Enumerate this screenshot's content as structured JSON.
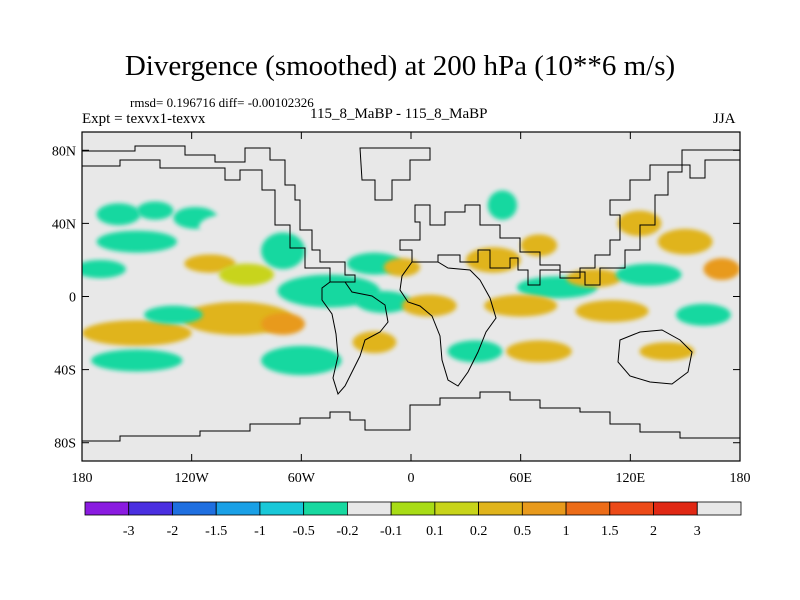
{
  "chart_data": {
    "type": "heatmap",
    "title": "Divergence (smoothed) at 200 hPa (10**6 m/s)",
    "stats_text": "rmsd= 0.196716  diff= -0.00102326",
    "left_label": "Expt = texvx1-texvx",
    "center_label": "115_8_MaBP - 115_8_MaBP",
    "right_label": "JJA",
    "x_range": [
      -180,
      180
    ],
    "y_range": [
      -90,
      90
    ],
    "x_ticks": [
      {
        "value": -180,
        "label": "180"
      },
      {
        "value": -120,
        "label": "120W"
      },
      {
        "value": -60,
        "label": "60W"
      },
      {
        "value": 0,
        "label": "0"
      },
      {
        "value": 60,
        "label": "60E"
      },
      {
        "value": 120,
        "label": "120E"
      },
      {
        "value": 180,
        "label": "180"
      }
    ],
    "y_ticks": [
      {
        "value": 80,
        "label": "80N"
      },
      {
        "value": 40,
        "label": "40N"
      },
      {
        "value": 0,
        "label": "0"
      },
      {
        "value": -40,
        "label": "40S"
      },
      {
        "value": -80,
        "label": "80S"
      }
    ],
    "colorbar": {
      "colors": [
        "#8a1be0",
        "#4a2fe0",
        "#1f6fe0",
        "#1aa0e6",
        "#19c8d8",
        "#18d8a0",
        "#e8e8e8",
        "#a8dc16",
        "#c8d41a",
        "#e0b41c",
        "#e89a1c",
        "#ec6c18",
        "#ec4a18",
        "#e02814",
        "#e8e8e8"
      ],
      "labels": [
        "-3",
        "-2",
        "-1.5",
        "-1",
        "-0.5",
        "-0.2",
        "-0.1",
        "0.1",
        "0.2",
        "0.5",
        "1",
        "1.5",
        "2",
        "3"
      ]
    },
    "patches": [
      {
        "lon": -160,
        "lat": 45,
        "rlon": 12,
        "rlat": 6,
        "value": -0.3
      },
      {
        "lon": -140,
        "lat": 47,
        "rlon": 10,
        "rlat": 5,
        "value": -0.3
      },
      {
        "lon": -118,
        "lat": 43,
        "rlon": 12,
        "rlat": 6,
        "value": -0.4
      },
      {
        "lon": -100,
        "lat": 38,
        "rlon": 16,
        "rlat": 7,
        "value": -0.2
      },
      {
        "lon": -150,
        "lat": 30,
        "rlon": 22,
        "rlat": 6,
        "value": -0.3
      },
      {
        "lon": -170,
        "lat": 15,
        "rlon": 14,
        "rlat": 5,
        "value": -0.3
      },
      {
        "lon": -110,
        "lat": 18,
        "rlon": 14,
        "rlat": 5,
        "value": 0.3
      },
      {
        "lon": -90,
        "lat": 12,
        "rlon": 15,
        "rlat": 6,
        "value": 0.15
      },
      {
        "lon": -70,
        "lat": 25,
        "rlon": 12,
        "rlat": 10,
        "value": -0.3
      },
      {
        "lon": -20,
        "lat": 18,
        "rlon": 15,
        "rlat": 6,
        "value": -0.3
      },
      {
        "lon": -5,
        "lat": 16,
        "rlon": 10,
        "rlat": 5,
        "value": 0.4
      },
      {
        "lon": -45,
        "lat": 3,
        "rlon": 28,
        "rlat": 9,
        "value": -0.5
      },
      {
        "lon": -15,
        "lat": -3,
        "rlon": 15,
        "rlat": 6,
        "value": -0.3
      },
      {
        "lon": -95,
        "lat": -12,
        "rlon": 30,
        "rlat": 9,
        "value": 0.3
      },
      {
        "lon": -70,
        "lat": -15,
        "rlon": 12,
        "rlat": 6,
        "value": 0.7
      },
      {
        "lon": -150,
        "lat": -20,
        "rlon": 30,
        "rlat": 7,
        "value": 0.2
      },
      {
        "lon": -130,
        "lat": -10,
        "rlon": 16,
        "rlat": 5,
        "value": -0.3
      },
      {
        "lon": -150,
        "lat": -35,
        "rlon": 25,
        "rlat": 6,
        "value": -0.3
      },
      {
        "lon": -60,
        "lat": -35,
        "rlon": 22,
        "rlat": 8,
        "value": -0.3
      },
      {
        "lon": -20,
        "lat": -25,
        "rlon": 12,
        "rlat": 6,
        "value": 0.2
      },
      {
        "lon": 10,
        "lat": -5,
        "rlon": 15,
        "rlat": 6,
        "value": 0.3
      },
      {
        "lon": 45,
        "lat": 20,
        "rlon": 15,
        "rlat": 7,
        "value": 0.2
      },
      {
        "lon": 50,
        "lat": 50,
        "rlon": 8,
        "rlat": 8,
        "value": -0.3
      },
      {
        "lon": 70,
        "lat": 28,
        "rlon": 10,
        "rlat": 6,
        "value": 0.3
      },
      {
        "lon": 80,
        "lat": 5,
        "rlon": 22,
        "rlat": 6,
        "value": -0.5
      },
      {
        "lon": 100,
        "lat": 10,
        "rlon": 15,
        "rlat": 5,
        "value": 0.3
      },
      {
        "lon": 130,
        "lat": 12,
        "rlon": 18,
        "rlat": 6,
        "value": -0.3
      },
      {
        "lon": 150,
        "lat": 30,
        "rlon": 15,
        "rlat": 7,
        "value": 0.3
      },
      {
        "lon": 125,
        "lat": 40,
        "rlon": 12,
        "rlat": 7,
        "value": 0.3
      },
      {
        "lon": 170,
        "lat": 15,
        "rlon": 10,
        "rlat": 6,
        "value": 0.5
      },
      {
        "lon": 60,
        "lat": -5,
        "rlon": 20,
        "rlat": 6,
        "value": 0.3
      },
      {
        "lon": 110,
        "lat": -8,
        "rlon": 20,
        "rlat": 6,
        "value": 0.3
      },
      {
        "lon": 160,
        "lat": -10,
        "rlon": 15,
        "rlat": 6,
        "value": -0.3
      },
      {
        "lon": 70,
        "lat": -30,
        "rlon": 18,
        "rlat": 6,
        "value": 0.2
      },
      {
        "lon": 35,
        "lat": -30,
        "rlon": 15,
        "rlat": 6,
        "value": -0.3
      },
      {
        "lon": 140,
        "lat": -30,
        "rlon": 15,
        "rlat": 5,
        "value": 0.2
      }
    ]
  }
}
